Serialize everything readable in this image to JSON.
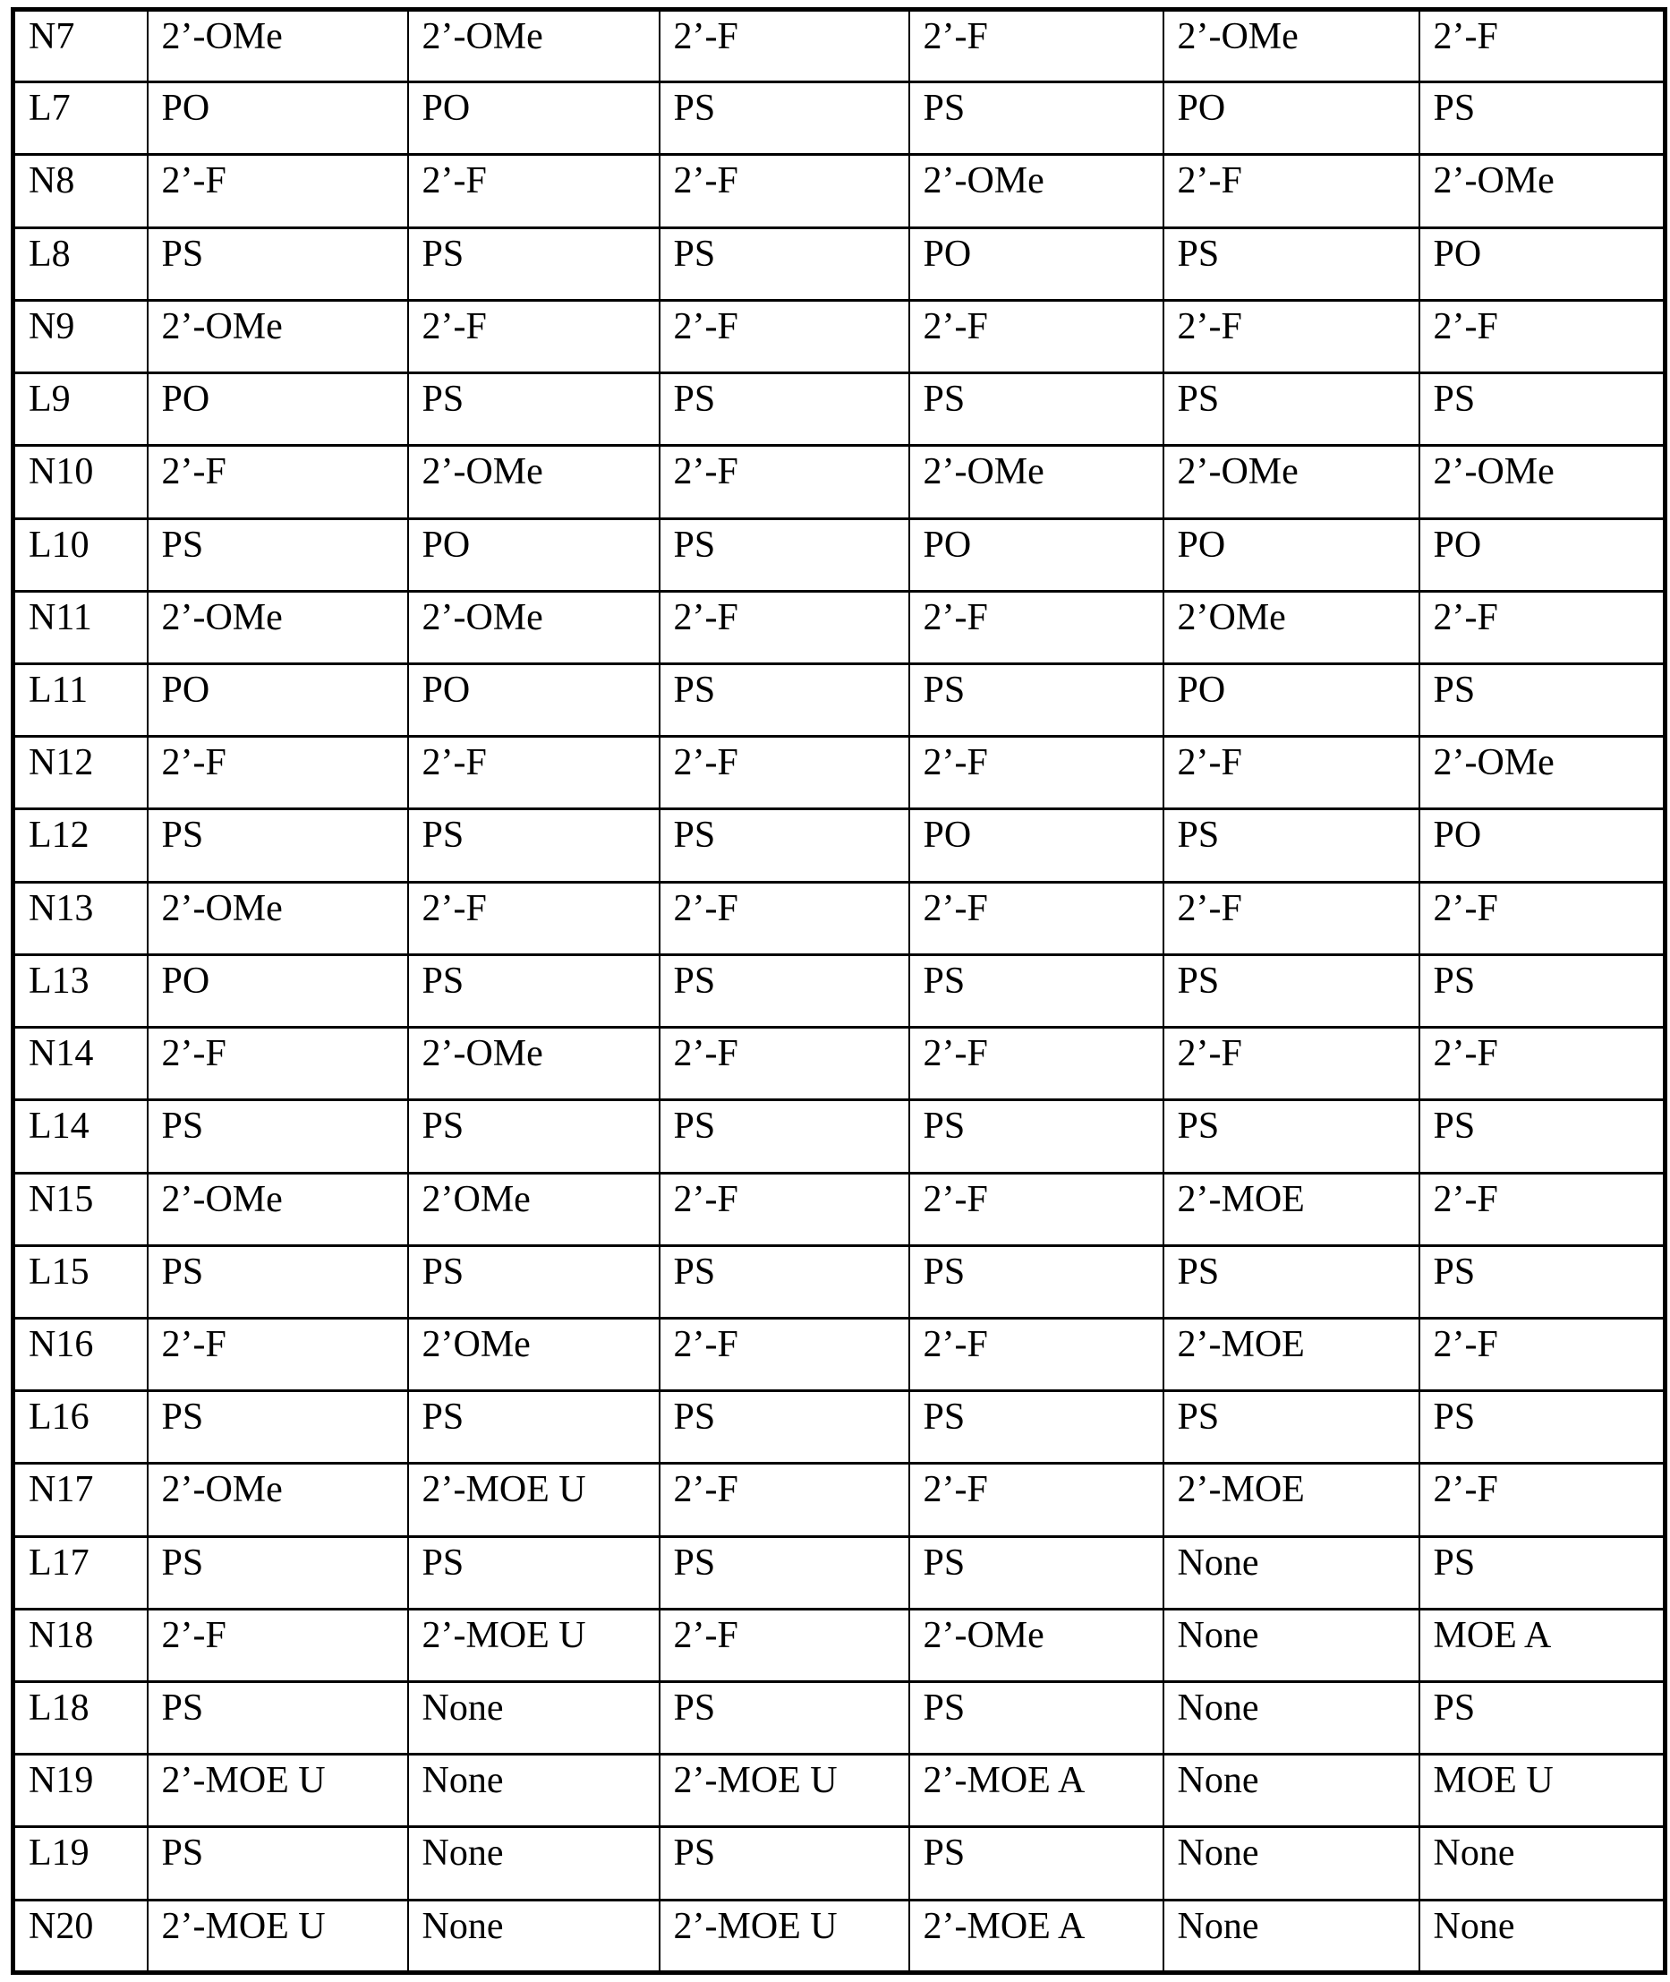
{
  "page": {
    "background_color": "#ffffff",
    "text_color": "#000000",
    "border_color": "#000000",
    "description": "patent-style oligonucleotide modification table, 27 rows x 7 columns, no header row"
  },
  "table": {
    "rows": [
      {
        "label": "N7",
        "cells": [
          "2’-OMe",
          "2’-OMe",
          "2’-F",
          "2’-F",
          "2’-OMe",
          "2’-F"
        ]
      },
      {
        "label": "L7",
        "cells": [
          "PO",
          "PO",
          "PS",
          "PS",
          "PO",
          "PS"
        ]
      },
      {
        "label": "N8",
        "cells": [
          "2’-F",
          "2’-F",
          "2’-F",
          "2’-OMe",
          "2’-F",
          "2’-OMe"
        ]
      },
      {
        "label": "L8",
        "cells": [
          "PS",
          "PS",
          "PS",
          "PO",
          "PS",
          "PO"
        ]
      },
      {
        "label": "N9",
        "cells": [
          "2’-OMe",
          "2’-F",
          "2’-F",
          "2’-F",
          "2’-F",
          "2’-F"
        ]
      },
      {
        "label": "L9",
        "cells": [
          "PO",
          "PS",
          "PS",
          "PS",
          "PS",
          "PS"
        ]
      },
      {
        "label": "N10",
        "cells": [
          "2’-F",
          "2’-OMe",
          "2’-F",
          "2’-OMe",
          "2’-OMe",
          "2’-OMe"
        ]
      },
      {
        "label": "L10",
        "cells": [
          "PS",
          "PO",
          "PS",
          "PO",
          "PO",
          "PO"
        ]
      },
      {
        "label": "N11",
        "cells": [
          "2’-OMe",
          "2’-OMe",
          "2’-F",
          "2’-F",
          "2’OMe",
          "2’-F"
        ]
      },
      {
        "label": "L11",
        "cells": [
          "PO",
          "PO",
          "PS",
          "PS",
          "PO",
          "PS"
        ]
      },
      {
        "label": "N12",
        "cells": [
          "2’-F",
          "2’-F",
          "2’-F",
          "2’-F",
          "2’-F",
          "2’-OMe"
        ]
      },
      {
        "label": "L12",
        "cells": [
          "PS",
          "PS",
          "PS",
          "PO",
          "PS",
          "PO"
        ]
      },
      {
        "label": "N13",
        "cells": [
          "2’-OMe",
          "2’-F",
          "2’-F",
          "2’-F",
          "2’-F",
          "2’-F"
        ]
      },
      {
        "label": "L13",
        "cells": [
          "PO",
          "PS",
          "PS",
          "PS",
          "PS",
          "PS"
        ]
      },
      {
        "label": "N14",
        "cells": [
          "2’-F",
          "2’-OMe",
          "2’-F",
          "2’-F",
          "2’-F",
          "2’-F"
        ]
      },
      {
        "label": "L14",
        "cells": [
          "PS",
          "PS",
          "PS",
          "PS",
          "PS",
          "PS"
        ]
      },
      {
        "label": "N15",
        "cells": [
          "2’-OMe",
          "2’OMe",
          "2’-F",
          "2’-F",
          "2’-MOE",
          "2’-F"
        ]
      },
      {
        "label": "L15",
        "cells": [
          "PS",
          "PS",
          "PS",
          "PS",
          "PS",
          "PS"
        ]
      },
      {
        "label": "N16",
        "cells": [
          "2’-F",
          "2’OMe",
          "2’-F",
          "2’-F",
          "2’-MOE",
          "2’-F"
        ]
      },
      {
        "label": "L16",
        "cells": [
          "PS",
          "PS",
          "PS",
          "PS",
          "PS",
          "PS"
        ]
      },
      {
        "label": "N17",
        "cells": [
          "2’-OMe",
          "2’-MOE U",
          "2’-F",
          "2’-F",
          "2’-MOE",
          "2’-F"
        ]
      },
      {
        "label": "L17",
        "cells": [
          "PS",
          "PS",
          "PS",
          "PS",
          "None",
          "PS"
        ]
      },
      {
        "label": "N18",
        "cells": [
          "2’-F",
          "2’-MOE U",
          "2’-F",
          "2’-OMe",
          "None",
          "MOE A"
        ]
      },
      {
        "label": "L18",
        "cells": [
          "PS",
          "None",
          "PS",
          "PS",
          "None",
          "PS"
        ]
      },
      {
        "label": "N19",
        "cells": [
          "2’-MOE U",
          "None",
          "2’-MOE U",
          "2’-MOE A",
          "None",
          "MOE U"
        ]
      },
      {
        "label": "L19",
        "cells": [
          "PS",
          "None",
          "PS",
          "PS",
          "None",
          "None"
        ]
      },
      {
        "label": "N20",
        "cells": [
          "2’-MOE U",
          "None",
          "2’-MOE U",
          "2’-MOE A",
          "None",
          "None"
        ]
      }
    ]
  }
}
